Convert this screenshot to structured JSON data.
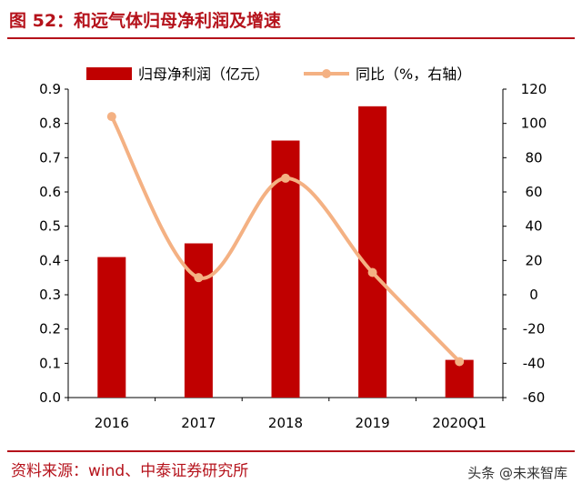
{
  "header": {
    "title": "图 52：和远气体归母净利润及增速"
  },
  "chart_data": {
    "type": "bar",
    "categories": [
      "2016",
      "2017",
      "2018",
      "2019",
      "2020Q1"
    ],
    "series": [
      {
        "name": "归母净利润（亿元）",
        "type": "bar",
        "axis": "left",
        "color": "#c00000",
        "values": [
          0.41,
          0.45,
          0.75,
          0.85,
          0.11
        ]
      },
      {
        "name": "同比（%，右轴）",
        "type": "line",
        "axis": "right",
        "color": "#f4b183",
        "values": [
          104,
          10,
          68,
          13,
          -39
        ]
      }
    ],
    "y_left": {
      "min": 0,
      "max": 0.9,
      "ticks": [
        "0.0",
        "0.1",
        "0.2",
        "0.3",
        "0.4",
        "0.5",
        "0.6",
        "0.7",
        "0.8",
        "0.9"
      ]
    },
    "y_right": {
      "min": -60,
      "max": 120,
      "ticks": [
        "-60",
        "-40",
        "-20",
        "0",
        "20",
        "40",
        "60",
        "80",
        "100",
        "120"
      ]
    },
    "legend_position": "top",
    "grid": false
  },
  "footer": {
    "source": "资料来源：wind、中泰证券研究所",
    "watermark": "头条 @未来智库"
  }
}
